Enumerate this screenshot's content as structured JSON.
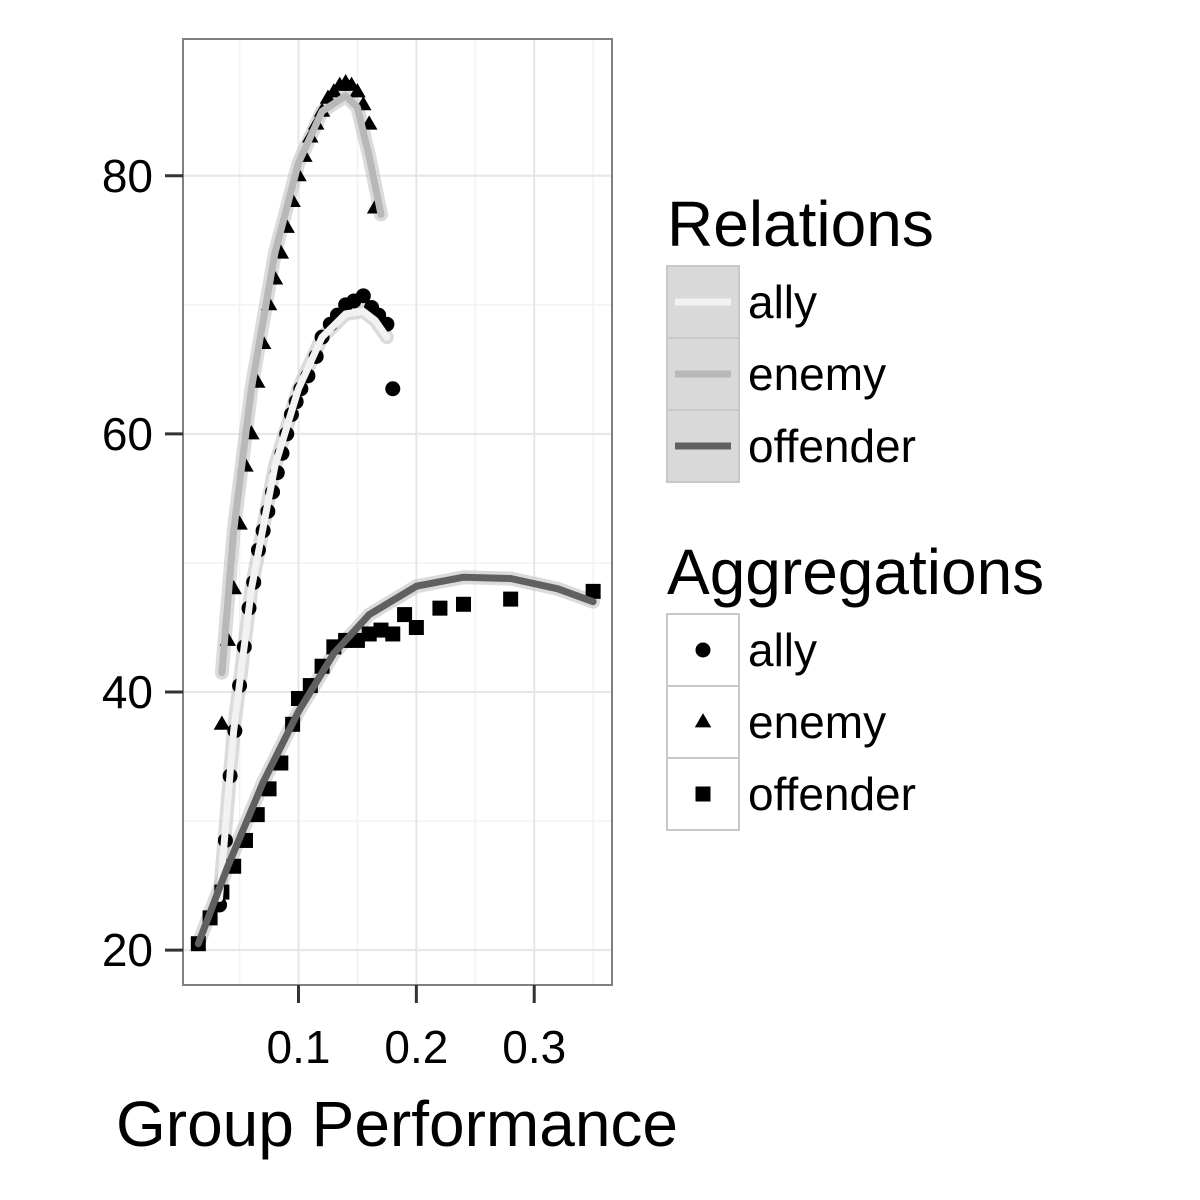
{
  "chart_data": {
    "type": "scatter",
    "title": "",
    "xlabel": "Group Performance",
    "ylabel": "",
    "xlim": [
      0.002,
      0.366
    ],
    "ylim": [
      17.3,
      90.6
    ],
    "x_ticks": [
      0.1,
      0.2,
      0.3
    ],
    "x_tick_labels": [
      "0.1",
      "0.2",
      "0.3"
    ],
    "y_ticks": [
      20,
      40,
      60,
      80
    ],
    "y_tick_labels": [
      "20",
      "40",
      "60",
      "80"
    ],
    "grid": true,
    "legend_position": "right",
    "series": [
      {
        "name": "ally",
        "shape": "circle",
        "points": [
          [
            0.033,
            23.5
          ],
          [
            0.038,
            28.5
          ],
          [
            0.042,
            33.5
          ],
          [
            0.046,
            37
          ],
          [
            0.05,
            40.5
          ],
          [
            0.054,
            43.5
          ],
          [
            0.058,
            46.5
          ],
          [
            0.062,
            48.5
          ],
          [
            0.066,
            51
          ],
          [
            0.07,
            52.5
          ],
          [
            0.074,
            54
          ],
          [
            0.078,
            55.5
          ],
          [
            0.082,
            57
          ],
          [
            0.086,
            58.5
          ],
          [
            0.09,
            60
          ],
          [
            0.094,
            61.5
          ],
          [
            0.098,
            62.5
          ],
          [
            0.102,
            63.5
          ],
          [
            0.108,
            64.5
          ],
          [
            0.115,
            66
          ],
          [
            0.12,
            67.5
          ],
          [
            0.127,
            68.5
          ],
          [
            0.133,
            69.2
          ],
          [
            0.14,
            70
          ],
          [
            0.147,
            70.3
          ],
          [
            0.155,
            70.7
          ],
          [
            0.162,
            69.8
          ],
          [
            0.168,
            69.2
          ],
          [
            0.175,
            68.5
          ],
          [
            0.18,
            63.5
          ]
        ],
        "fit": [
          [
            0.033,
            24
          ],
          [
            0.045,
            37
          ],
          [
            0.06,
            48
          ],
          [
            0.08,
            57.5
          ],
          [
            0.1,
            63.5
          ],
          [
            0.12,
            67.5
          ],
          [
            0.14,
            69.3
          ],
          [
            0.155,
            69.5
          ],
          [
            0.165,
            68.8
          ],
          [
            0.175,
            67.5
          ]
        ]
      },
      {
        "name": "enemy",
        "shape": "triangle",
        "points": [
          [
            0.035,
            37.5
          ],
          [
            0.04,
            44
          ],
          [
            0.045,
            48
          ],
          [
            0.05,
            53
          ],
          [
            0.055,
            57.5
          ],
          [
            0.06,
            60
          ],
          [
            0.065,
            64
          ],
          [
            0.07,
            67
          ],
          [
            0.075,
            70
          ],
          [
            0.08,
            72
          ],
          [
            0.085,
            74
          ],
          [
            0.09,
            76
          ],
          [
            0.095,
            78
          ],
          [
            0.1,
            80
          ],
          [
            0.105,
            81.5
          ],
          [
            0.11,
            83
          ],
          [
            0.115,
            84
          ],
          [
            0.12,
            85
          ],
          [
            0.125,
            86
          ],
          [
            0.13,
            86.5
          ],
          [
            0.135,
            87
          ],
          [
            0.14,
            87.2
          ],
          [
            0.145,
            87
          ],
          [
            0.15,
            86.5
          ],
          [
            0.155,
            85.5
          ],
          [
            0.16,
            84
          ],
          [
            0.165,
            77.5
          ]
        ],
        "fit": [
          [
            0.035,
            41.5
          ],
          [
            0.045,
            52.5
          ],
          [
            0.06,
            63.5
          ],
          [
            0.08,
            74
          ],
          [
            0.1,
            81
          ],
          [
            0.12,
            85
          ],
          [
            0.14,
            86.2
          ],
          [
            0.15,
            85.3
          ],
          [
            0.16,
            81.5
          ],
          [
            0.17,
            77
          ]
        ]
      },
      {
        "name": "offender",
        "shape": "square",
        "points": [
          [
            0.015,
            20.5
          ],
          [
            0.025,
            22.5
          ],
          [
            0.035,
            24.5
          ],
          [
            0.045,
            26.5
          ],
          [
            0.055,
            28.5
          ],
          [
            0.065,
            30.5
          ],
          [
            0.075,
            32.5
          ],
          [
            0.085,
            34.5
          ],
          [
            0.095,
            37.5
          ],
          [
            0.1,
            39.5
          ],
          [
            0.11,
            40.5
          ],
          [
            0.12,
            42
          ],
          [
            0.13,
            43.5
          ],
          [
            0.14,
            44
          ],
          [
            0.15,
            44
          ],
          [
            0.16,
            44.5
          ],
          [
            0.17,
            44.8
          ],
          [
            0.18,
            44.5
          ],
          [
            0.19,
            46
          ],
          [
            0.2,
            45
          ],
          [
            0.22,
            46.5
          ],
          [
            0.24,
            46.8
          ],
          [
            0.28,
            47.2
          ],
          [
            0.35,
            47.8
          ]
        ],
        "fit": [
          [
            0.015,
            20.5
          ],
          [
            0.04,
            26.5
          ],
          [
            0.07,
            33
          ],
          [
            0.1,
            38.5
          ],
          [
            0.13,
            43
          ],
          [
            0.16,
            46
          ],
          [
            0.2,
            48.2
          ],
          [
            0.24,
            48.9
          ],
          [
            0.28,
            48.8
          ],
          [
            0.32,
            48
          ],
          [
            0.35,
            47
          ]
        ]
      }
    ],
    "legends": [
      {
        "title": "Relations",
        "entries": [
          {
            "label": "ally",
            "line_color": "#f2f2f2"
          },
          {
            "label": "enemy",
            "line_color": "#b8b8b8"
          },
          {
            "label": "offender",
            "line_color": "#606060"
          }
        ]
      },
      {
        "title": "Aggregations",
        "entries": [
          {
            "label": "ally",
            "shape": "circle"
          },
          {
            "label": "enemy",
            "shape": "triangle"
          },
          {
            "label": "offender",
            "shape": "square"
          }
        ]
      }
    ],
    "colors": {
      "ally_line": "#f2f2f2",
      "enemy_line": "#b8b8b8",
      "offender_line": "#606060",
      "ribbon": "#bdbdbd",
      "points": "#000000",
      "grid_major": "#e6e6e6",
      "grid_minor": "#f2f2f2",
      "panel_border": "#808080",
      "legend_key_bg": "#d9d9d9"
    }
  }
}
